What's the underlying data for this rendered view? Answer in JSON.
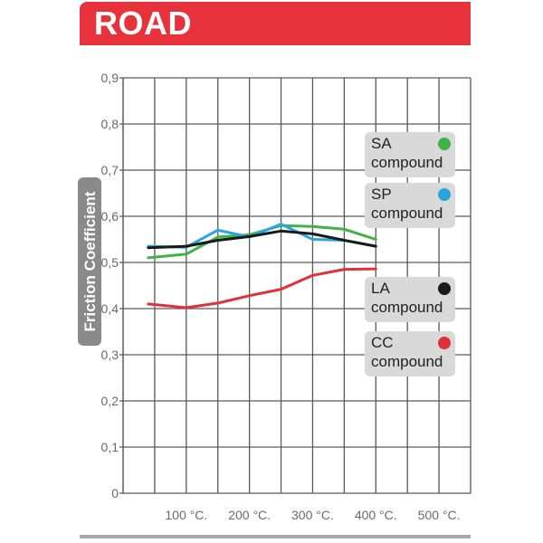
{
  "header": {
    "title": "ROAD"
  },
  "chart_data": {
    "type": "line",
    "ylabel": "Friction Coefficient",
    "xlabel": "",
    "x_ticks": [
      {
        "value": 100,
        "label": "100 °C."
      },
      {
        "value": 200,
        "label": "200 °C."
      },
      {
        "value": 300,
        "label": "300 °C."
      },
      {
        "value": 400,
        "label": "400 °C."
      },
      {
        "value": 500,
        "label": "500 °C."
      }
    ],
    "y_ticks": [
      {
        "value": 0,
        "label": "0"
      },
      {
        "value": 0.1,
        "label": "0,1"
      },
      {
        "value": 0.2,
        "label": "0,2"
      },
      {
        "value": 0.3,
        "label": "0,3"
      },
      {
        "value": 0.4,
        "label": "0,4"
      },
      {
        "value": 0.5,
        "label": "0,5"
      },
      {
        "value": 0.6,
        "label": "0,6"
      },
      {
        "value": 0.7,
        "label": "0,7"
      },
      {
        "value": 0.8,
        "label": "0,8"
      },
      {
        "value": 0.9,
        "label": "0,9"
      }
    ],
    "xlim": [
      0,
      550
    ],
    "ylim": [
      0,
      0.9
    ],
    "grid": true,
    "legend_position": "right",
    "series": [
      {
        "name": "SA compound",
        "color": "#3fb34a",
        "x": [
          40,
          100,
          150,
          200,
          250,
          300,
          350,
          400
        ],
        "y": [
          0.51,
          0.518,
          0.555,
          0.56,
          0.58,
          0.578,
          0.572,
          0.55
        ]
      },
      {
        "name": "SP compound",
        "color": "#29a6e0",
        "x": [
          40,
          100,
          150,
          200,
          250,
          300,
          350,
          400
        ],
        "y": [
          0.535,
          0.533,
          0.57,
          0.555,
          0.583,
          0.55,
          0.548,
          0.535
        ]
      },
      {
        "name": "LA compound",
        "color": "#1a1a1a",
        "x": [
          40,
          100,
          150,
          200,
          250,
          300,
          350,
          400
        ],
        "y": [
          0.532,
          0.535,
          0.548,
          0.556,
          0.568,
          0.562,
          0.548,
          0.535
        ]
      },
      {
        "name": "CC compound",
        "color": "#e0303a",
        "x": [
          40,
          100,
          150,
          200,
          250,
          300,
          350,
          400
        ],
        "y": [
          0.41,
          0.402,
          0.412,
          0.428,
          0.442,
          0.472,
          0.485,
          0.486
        ]
      }
    ],
    "legend": [
      {
        "line1": "SA",
        "line2": "compound",
        "color": "#3fb34a"
      },
      {
        "line1": "SP",
        "line2": "compound",
        "color": "#29a6e0"
      },
      {
        "line1": "LA",
        "line2": "compound",
        "color": "#1a1a1a"
      },
      {
        "line1": "CC",
        "line2": "compound",
        "color": "#e0303a"
      }
    ]
  }
}
